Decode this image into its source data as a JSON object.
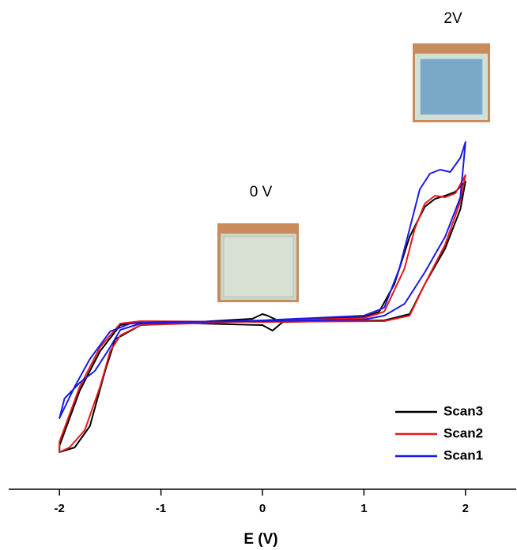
{
  "chart_data": {
    "type": "line",
    "x_label": "E (V)",
    "annotations": [
      "0 V",
      "2V"
    ],
    "xlim": [
      -2.5,
      2.5
    ],
    "xticks": [
      -2,
      -1,
      0,
      1,
      2
    ],
    "ylim": [
      -21.3,
      40.7
    ],
    "grid": false,
    "legend": "lower right",
    "series": [
      {
        "name": "Scan3",
        "color": "#000000",
        "x": [
          1.15,
          1.3,
          1.45,
          1.6,
          1.7,
          1.8,
          1.9,
          2,
          1.95,
          1.8,
          1.6,
          1.45,
          1.2,
          0.2,
          0.1,
          0,
          -1.2,
          -1.4,
          -1.6,
          -1.8,
          -2,
          -2,
          -1.85,
          -1.7,
          -1.55,
          -1.45,
          -1.2,
          -0.1,
          0,
          0.05,
          0.15,
          1,
          1.15
        ],
        "values": [
          1.2,
          4.7,
          10.7,
          14.5,
          15.5,
          15.9,
          16.4,
          17.7,
          14.2,
          9.2,
          4.7,
          0.9,
          0.1,
          -0.1,
          -1.2,
          -0.5,
          -0.1,
          -0.5,
          -3.8,
          -8.8,
          -15.8,
          -16.6,
          -16,
          -13.3,
          -6.3,
          -2.3,
          -0.5,
          0.3,
          0.9,
          0.7,
          0.1,
          0.5,
          1.2
        ]
      },
      {
        "name": "Scan2",
        "color": "#e8191b",
        "x": [
          1.2,
          1.4,
          1.5,
          1.6,
          1.7,
          1.8,
          1.9,
          2,
          1.95,
          1.8,
          1.6,
          1.45,
          1.2,
          0,
          -1.2,
          -1.4,
          -1.6,
          -1.8,
          -2,
          -2,
          -1.9,
          -1.75,
          -1.6,
          -1.5,
          -1.4,
          -1.2,
          0,
          1,
          1.2
        ],
        "values": [
          1.2,
          6.7,
          11.7,
          14.9,
          15.9,
          15.7,
          16.2,
          18.5,
          15.2,
          9.7,
          4.7,
          0.7,
          0,
          -0.1,
          0,
          -0.3,
          -3.3,
          -8.3,
          -15.3,
          -16.6,
          -16,
          -13.8,
          -8.3,
          -3.8,
          -1.8,
          -0.5,
          0,
          0.4,
          1.2
        ]
      },
      {
        "name": "Scan1",
        "color": "#1a1ae6",
        "x": [
          1.2,
          1.35,
          1.45,
          1.55,
          1.65,
          1.75,
          1.85,
          1.95,
          2,
          1.95,
          1.8,
          1.6,
          1.4,
          1.2,
          1,
          0,
          -1,
          -1.3,
          -1.5,
          -1.7,
          -1.85,
          -2,
          -1.95,
          -1.8,
          -1.65,
          -1.5,
          -1.4,
          -1.2,
          0,
          1,
          1.2
        ],
        "values": [
          1.7,
          6.7,
          11.7,
          16.7,
          18.7,
          19.2,
          18.9,
          20.7,
          22.7,
          15.7,
          10.7,
          6.2,
          2.2,
          0.7,
          0.2,
          0,
          -0.1,
          -0.3,
          -1.3,
          -4.8,
          -8.3,
          -12.3,
          -9.8,
          -7.8,
          -6.3,
          -3.3,
          -1.1,
          -0.3,
          0.1,
          0.7,
          1.7
        ]
      }
    ]
  }
}
